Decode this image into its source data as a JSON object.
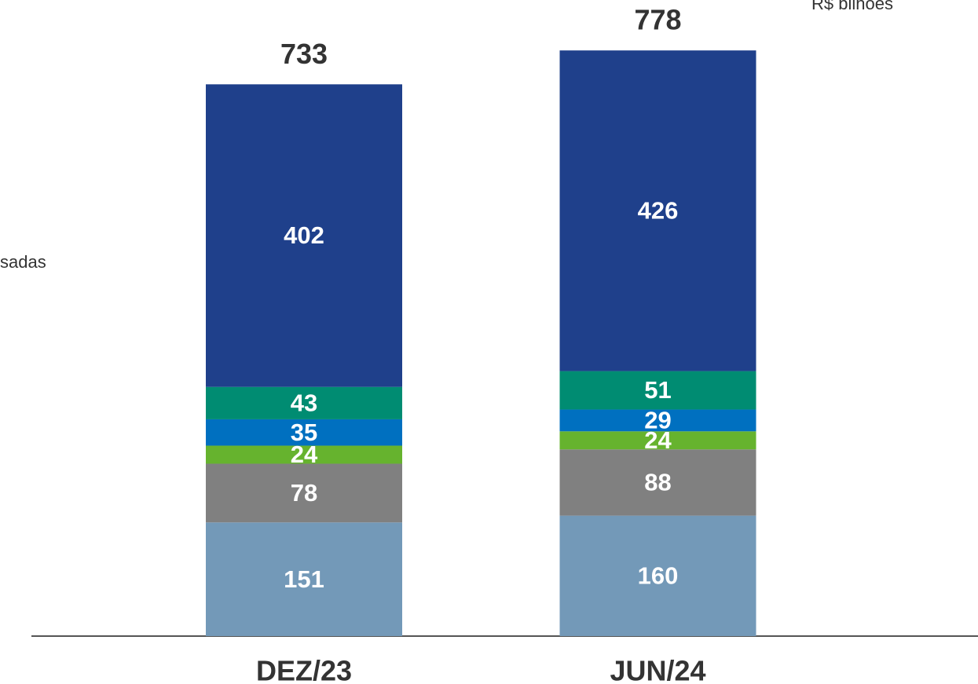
{
  "chart_data": {
    "type": "stacked_bar",
    "categories": [
      "DEZ/23",
      "JUN/24"
    ],
    "series": [
      {
        "color": "#7399b8",
        "values": [
          151,
          160
        ]
      },
      {
        "color": "#808080",
        "values": [
          78,
          88
        ]
      },
      {
        "color": "#66b32e",
        "values": [
          24,
          24
        ]
      },
      {
        "color": "#0070c0",
        "values": [
          35,
          29
        ]
      },
      {
        "color": "#008c72",
        "values": [
          43,
          51
        ]
      },
      {
        "color": "#1f408b",
        "values": [
          402,
          426
        ]
      }
    ],
    "totals": [
      733,
      778
    ],
    "ylim": [
      0,
      845
    ],
    "unit_label": "R$ bilhões",
    "annotation": "sadas"
  }
}
